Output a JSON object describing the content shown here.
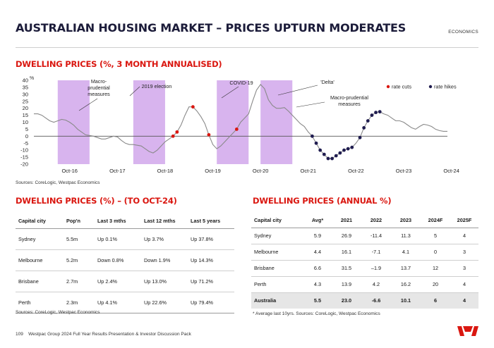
{
  "header": {
    "title": "AUSTRALIAN HOUSING MARKET – PRICES UPTURN MODERATES",
    "section": "ECONOMICS"
  },
  "chart_section": {
    "title": "DWELLING PRICES (%, 3 MONTH ANNUALISED)",
    "source": "Sources: CoreLogic, Westpac Economics"
  },
  "chart_data": {
    "type": "line",
    "title": "DWELLING PRICES (%, 3 MONTH ANNUALISED)",
    "ylabel": "%",
    "ylim": [
      -20,
      40
    ],
    "yticks": [
      40,
      35,
      30,
      25,
      20,
      15,
      10,
      5,
      0,
      -5,
      -10,
      -15,
      -20
    ],
    "x_tick_labels": [
      "Oct-16",
      "Oct-17",
      "Oct-18",
      "Oct-19",
      "Oct-20",
      "Oct-21",
      "Oct-22",
      "Oct-23",
      "Oct-24"
    ],
    "x_start": "Jan-2016",
    "series": [
      {
        "name": "Dwelling prices, 3mth annualised",
        "values": [
          16,
          16,
          15,
          13,
          11,
          10,
          11,
          12,
          11.5,
          10,
          8,
          5,
          3,
          1,
          0.5,
          0,
          -1,
          -2,
          -2,
          -1,
          0,
          -0.5,
          -3,
          -5,
          -6,
          -6,
          -6.5,
          -7,
          -9,
          -11,
          -12,
          -10,
          -7,
          -4,
          -2,
          0,
          3,
          8,
          15,
          21,
          21,
          18,
          14,
          9,
          1,
          -6,
          -9,
          -7,
          -4,
          -1,
          2,
          5,
          10,
          13,
          16,
          25,
          33,
          37,
          34,
          26,
          22,
          20,
          20,
          20.5,
          18,
          15,
          12,
          9,
          7,
          3,
          0,
          -5,
          -10,
          -13,
          -16,
          -16,
          -14,
          -12,
          -10,
          -9,
          -8,
          -5,
          -1,
          6,
          11,
          15,
          17,
          17.5,
          16,
          15,
          13,
          11,
          11,
          10,
          8,
          6,
          5,
          7,
          8.5,
          8,
          7,
          5,
          4,
          3.5,
          3.5
        ]
      }
    ],
    "markers": [
      {
        "name": "rate cuts",
        "color": "#da1710",
        "index": [
          35,
          36,
          40,
          44,
          51
        ]
      },
      {
        "name": "rate hikes",
        "color": "#1f1c4f",
        "index": [
          70,
          71,
          72,
          73,
          74,
          75,
          76,
          77,
          78,
          79,
          80,
          82,
          83,
          84,
          85,
          86,
          87
        ]
      }
    ],
    "shaded_periods": [
      {
        "from": 6,
        "to": 14
      },
      {
        "from": 25,
        "to": 33
      },
      {
        "from": 46,
        "to": 54
      },
      {
        "from": 57,
        "to": 65
      }
    ],
    "annotations": [
      {
        "text": "Macro-prudential measures",
        "lines": [
          "Macro-",
          "prudential",
          "measures"
        ]
      },
      {
        "text": "2019 election",
        "lines": [
          "2019 election"
        ]
      },
      {
        "text": "COVID-19",
        "lines": [
          "COVID-19"
        ]
      },
      {
        "text": "'Delta'",
        "lines": [
          "'Delta'"
        ]
      },
      {
        "text": "Macro-prudential measures",
        "lines": [
          "Macro-prudential",
          "measures"
        ]
      }
    ],
    "legend": [
      "rate cuts",
      "rate hikes"
    ]
  },
  "table1": {
    "title": "DWELLING PRICES (%) – (TO OCT-24)",
    "source": "Sources: CoreLogic, Westpac Economics",
    "headers": [
      "Capital city",
      "Pop'n",
      "Last 3 mths",
      "Last 12 mths",
      "Last 5 years"
    ],
    "rows": [
      [
        "Sydney",
        "5.5m",
        "Up 0.1%",
        "Up 3.7%",
        "Up 37.8%"
      ],
      [
        "Melbourne",
        "5.2m",
        "Down 0.8%",
        "Down 1.9%",
        "Up 14.3%"
      ],
      [
        "Brisbane",
        "2.7m",
        "Up 2.4%",
        "Up 13.0%",
        "Up 71.2%"
      ],
      [
        "Perth",
        "2.3m",
        "Up 4.1%",
        "Up 22.6%",
        "Up 79.4%"
      ]
    ]
  },
  "table2": {
    "title": "DWELLING PRICES (ANNUAL %)",
    "note": "* Average last 10yrs. Sources: CoreLogic, Westpac Economics",
    "headers": [
      "Capital city",
      "Avg*",
      "2021",
      "2022",
      "2023",
      "2024F",
      "2025F"
    ],
    "rows": [
      [
        "Sydney",
        "5.9",
        "26.9",
        "-11.4",
        "11.3",
        "5",
        "4"
      ],
      [
        "Melbourne",
        "4.4",
        "16.1",
        "-7.1",
        "4.1",
        "0",
        "3"
      ],
      [
        "Brisbane",
        "6.6",
        "31.5",
        "–1.9",
        "13.7",
        "12",
        "3"
      ],
      [
        "Perth",
        "4.3",
        "13.9",
        "4.2",
        "16.2",
        "20",
        "4"
      ]
    ],
    "total": [
      "Australia",
      "5.5",
      "23.0",
      "-6.6",
      "10.1",
      "6",
      "4"
    ]
  },
  "footer": {
    "page": "109",
    "text": "Westpac Group 2024 Full Year Results Presentation & Investor Discussion Pack"
  },
  "colors": {
    "accent": "#da1710",
    "navy": "#1f1c4f",
    "shade": "#d8b4ee",
    "line": "#8a8a8a"
  }
}
